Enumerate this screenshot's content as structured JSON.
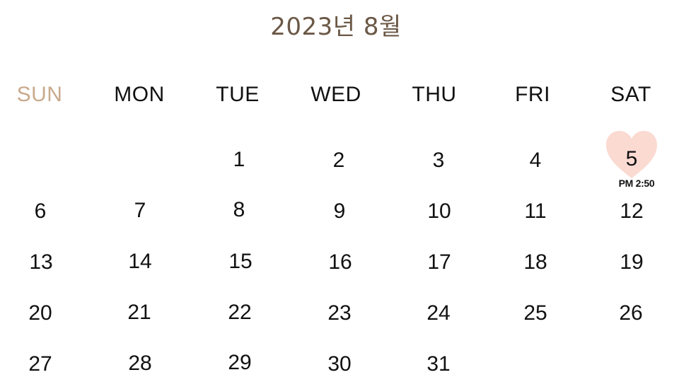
{
  "calendar": {
    "title": "2023년 8월",
    "weekdays": [
      "SUN",
      "MON",
      "TUE",
      "WED",
      "THU",
      "FRI",
      "SAT"
    ],
    "days": [
      [
        "",
        "",
        "1",
        "2",
        "3",
        "4",
        "5"
      ],
      [
        "6",
        "7",
        "8",
        "9",
        "10",
        "11",
        "12"
      ],
      [
        "13",
        "14",
        "15",
        "16",
        "17",
        "18",
        "19"
      ],
      [
        "20",
        "21",
        "22",
        "23",
        "24",
        "25",
        "26"
      ],
      [
        "27",
        "28",
        "29",
        "30",
        "31",
        "",
        ""
      ]
    ],
    "highlight": {
      "day": "5",
      "time": "PM 2:50",
      "icon": "heart-icon",
      "color": "#fbdad2"
    },
    "colors": {
      "title": "#6b5846",
      "sunday": "#c9aa8d",
      "text": "#111111"
    }
  }
}
